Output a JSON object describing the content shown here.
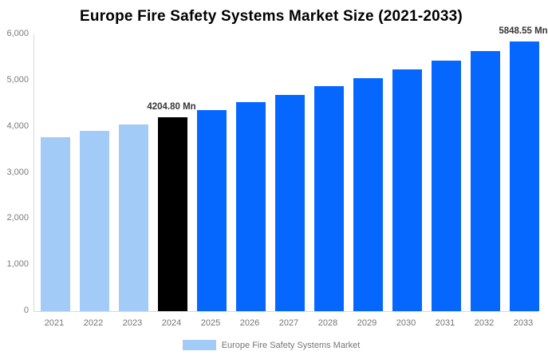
{
  "chart_data": {
    "type": "bar",
    "title": "Europe Fire Safety Systems Market Size (2021-2033)",
    "categories": [
      "2021",
      "2022",
      "2023",
      "2024",
      "2025",
      "2026",
      "2027",
      "2028",
      "2029",
      "2030",
      "2031",
      "2032",
      "2033"
    ],
    "series": [
      {
        "name": "Europe Fire Safety Systems Market",
        "values": [
          3767,
          3908,
          4054,
          4204.8,
          4362,
          4524,
          4693,
          4868,
          5050,
          5238,
          5433,
          5636,
          5848.55
        ]
      }
    ],
    "xlabel": "",
    "ylabel": "",
    "ylim": [
      0,
      6000
    ],
    "ytick_interval": 1000,
    "ytick_labels": [
      "0",
      "1,000",
      "2,000",
      "3,000",
      "4,000",
      "5,000",
      "6,000"
    ],
    "grid": false,
    "legend_position": "bottom",
    "data_labels": [
      {
        "category": "2024",
        "text": "4204.80 Mn"
      },
      {
        "category": "2033",
        "text": "5848.55 Mn"
      }
    ],
    "colors": {
      "past": "#A3CBF7",
      "current": "#000000",
      "forecast": "#0667FF"
    },
    "bar_roles": [
      "past",
      "past",
      "past",
      "current",
      "forecast",
      "forecast",
      "forecast",
      "forecast",
      "forecast",
      "forecast",
      "forecast",
      "forecast",
      "forecast"
    ],
    "axis_line_color": "#d9d9d9"
  },
  "legend": {
    "label": "Europe Fire Safety Systems Market"
  }
}
